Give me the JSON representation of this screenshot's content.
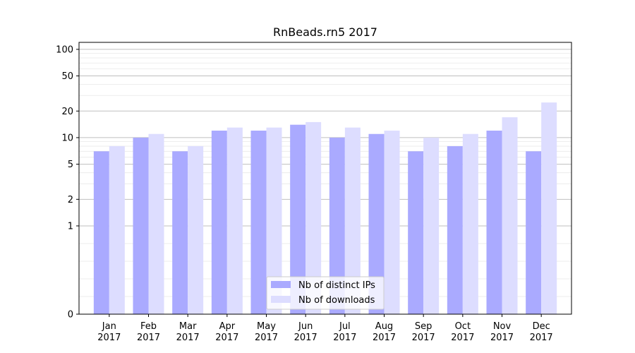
{
  "chart_data": {
    "type": "bar",
    "title": "RnBeads.rn5 2017",
    "xlabel": "",
    "ylabel": "",
    "y_scale": "symlog",
    "ylim": [
      0,
      120
    ],
    "y_ticks": [
      0,
      1,
      2,
      5,
      10,
      20,
      50,
      100
    ],
    "grid": true,
    "legend_position": "bottom-center",
    "categories": [
      [
        "Jan",
        "2017"
      ],
      [
        "Feb",
        "2017"
      ],
      [
        "Mar",
        "2017"
      ],
      [
        "Apr",
        "2017"
      ],
      [
        "May",
        "2017"
      ],
      [
        "Jun",
        "2017"
      ],
      [
        "Jul",
        "2017"
      ],
      [
        "Aug",
        "2017"
      ],
      [
        "Sep",
        "2017"
      ],
      [
        "Oct",
        "2017"
      ],
      [
        "Nov",
        "2017"
      ],
      [
        "Dec",
        "2017"
      ]
    ],
    "series": [
      {
        "name": "Nb of distinct IPs",
        "color": "#aaaaff",
        "values": [
          7,
          10,
          7,
          12,
          12,
          14,
          10,
          11,
          7,
          8,
          12,
          7
        ]
      },
      {
        "name": "Nb of downloads",
        "color": "#ddddff",
        "values": [
          8,
          11,
          8,
          13,
          13,
          15,
          13,
          12,
          10,
          11,
          17,
          25
        ]
      }
    ]
  }
}
